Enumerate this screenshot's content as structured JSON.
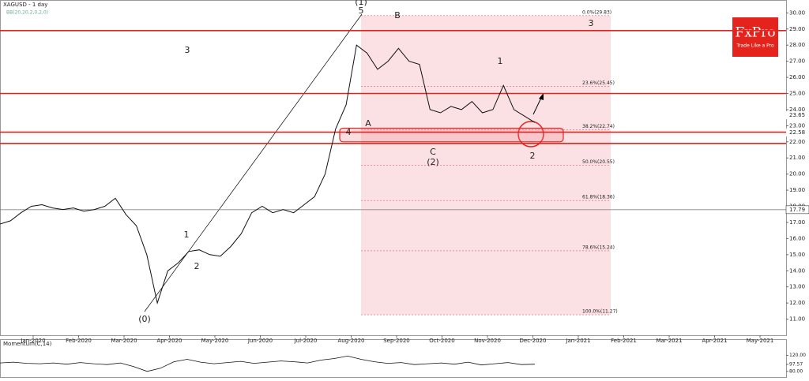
{
  "chart_data": {
    "type": "line",
    "title": "XAGUSD - 1 day",
    "subtitle": "BB(20,20,2,0,2,0)",
    "logo": "FxPro",
    "logo_tagline": "Trade Like a Pro",
    "color": "#111111",
    "ylim": [
      10,
      30.8
    ],
    "yticks": [
      {
        "value": 11,
        "label": "11.00"
      },
      {
        "value": 12,
        "label": "12.00"
      },
      {
        "value": 13,
        "label": "13.00"
      },
      {
        "value": 14,
        "label": "14.00"
      },
      {
        "value": 15,
        "label": "15.00"
      },
      {
        "value": 16,
        "label": "16.00"
      },
      {
        "value": 17,
        "label": "17.00"
      },
      {
        "value": 18,
        "label": "18.00"
      },
      {
        "value": 19,
        "label": "19.00"
      },
      {
        "value": 20,
        "label": "20.00"
      },
      {
        "value": 21,
        "label": "21.00"
      },
      {
        "value": 22,
        "label": "22.00"
      },
      {
        "value": 23,
        "label": "23.00"
      },
      {
        "value": 24,
        "label": "24.00"
      },
      {
        "value": 25,
        "label": "25.00"
      },
      {
        "value": 26,
        "label": "26.00"
      },
      {
        "value": 27,
        "label": "27.00"
      },
      {
        "value": 28,
        "label": "28.00"
      },
      {
        "value": 29,
        "label": "29.00"
      },
      {
        "value": 30,
        "label": "30.00"
      }
    ],
    "xticks": [
      "Jan-2020",
      "Feb-2020",
      "Mar-2020",
      "Apr-2020",
      "May-2020",
      "Jun-2020",
      "Jul-2020",
      "Aug-2020",
      "Sep-2020",
      "Oct-2020",
      "Nov-2020",
      "Dec-2020",
      "Jan-2021",
      "Feb-2021",
      "Mar-2021",
      "Apr-2021",
      "May-2021"
    ],
    "values": [
      16.9,
      17.1,
      17.6,
      18.0,
      18.1,
      17.9,
      17.8,
      17.9,
      17.7,
      17.8,
      18.0,
      18.5,
      17.5,
      16.8,
      15.0,
      12.0,
      14.0,
      14.5,
      15.2,
      15.3,
      15.0,
      14.9,
      15.5,
      16.3,
      17.6,
      18.0,
      17.6,
      17.8,
      17.6,
      18.1,
      18.6,
      20.0,
      22.8,
      24.3,
      28.0,
      27.5,
      26.5,
      27.0,
      27.8,
      27.0,
      26.8,
      24.0,
      23.8,
      24.2,
      24.0,
      24.5,
      23.8,
      24.0,
      25.5,
      24.0,
      23.6,
      23.2
    ],
    "resistance_lines": [
      28.9,
      25.0,
      22.6,
      21.9
    ],
    "reference_line": {
      "value": 17.79,
      "label": "17.79"
    },
    "price_labels": [
      {
        "value": 23.65,
        "label": "23.65"
      },
      {
        "value": 22.58,
        "label": "22.58"
      }
    ],
    "fib_levels": [
      {
        "value": 29.83,
        "label": "0.0%(29.83)"
      },
      {
        "value": 25.45,
        "label": "23.6%(25.45)"
      },
      {
        "value": 22.74,
        "label": "38.2%(22.74)"
      },
      {
        "value": 20.55,
        "label": "50.0%(20.55)"
      },
      {
        "value": 18.36,
        "label": "61.8%(18.36)"
      },
      {
        "value": 15.24,
        "label": "78.6%(15.24)"
      },
      {
        "value": 11.27,
        "label": "100.0%(11.27)"
      }
    ],
    "wave_labels": [
      "(0)",
      "1",
      "2",
      "3",
      "4",
      "5",
      "(1)",
      "A",
      "B",
      "C",
      "(2)",
      "1",
      "2",
      "3"
    ],
    "momentum": {
      "title": "Momentum(C,14)",
      "ylim": [
        66,
        158
      ],
      "yticks": [
        {
          "value": 80,
          "label": "80.00"
        },
        {
          "value": 97.57,
          "label": "97.57"
        },
        {
          "value": 120,
          "label": "120.00"
        }
      ],
      "values": [
        101,
        103,
        100,
        99,
        101,
        98,
        102,
        99,
        97,
        101,
        92,
        80,
        88,
        104,
        110,
        103,
        99,
        102,
        105,
        100,
        103,
        106,
        104,
        101,
        108,
        112,
        118,
        110,
        104,
        100,
        102,
        97,
        99,
        101,
        98,
        103,
        96,
        99,
        102,
        97,
        98
      ]
    }
  }
}
